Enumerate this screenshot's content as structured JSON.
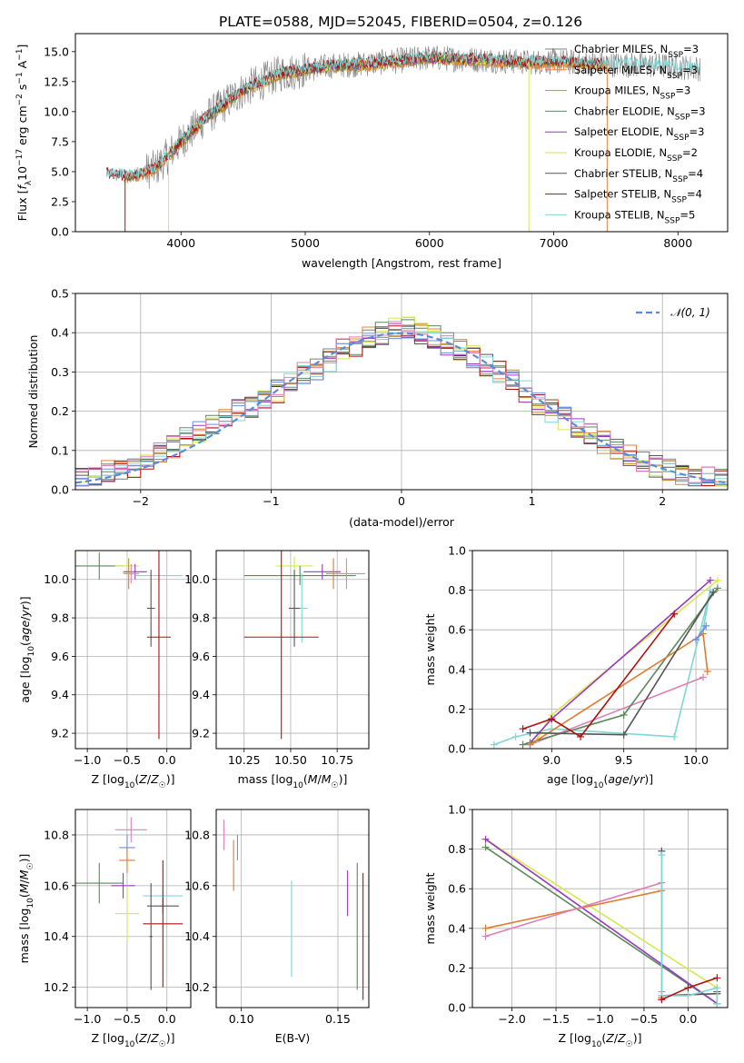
{
  "figure_title": "PLATE=0588, MJD=52045, FIBERID=0504, z=0.126",
  "colors": {
    "Chabrier MILES": "#7f7f7f",
    "Salpeter MILES": "#e8823a",
    "Kroupa MILES": "#c88f2c",
    "Chabrier ELODIE": "#5a8a5a",
    "Salpeter ELODIE": "#9a38c4",
    "Kroupa ELODIE": "#d6e84f",
    "Chabrier STELIB": "#555555",
    "Salpeter STELIB": "#b01010",
    "Kroupa STELIB": "#7fd6d6",
    "extra_blue": "#6a8fe0",
    "extra_orange": "#e07b30",
    "extra_pink": "#e07fb6",
    "normal_curve": "#5b8bd6"
  },
  "chart_data": [
    {
      "type": "line",
      "title": "",
      "xlabel": "wavelength [Angstrom, rest frame]",
      "ylabel": "Flux [f_λ10^-17 erg cm^-2 s^-1 A^-1]",
      "xlim": [
        3150,
        8400
      ],
      "ylim": [
        0,
        16.5
      ],
      "xticks": [
        4000,
        5000,
        6000,
        7000,
        8000
      ],
      "yticks": [
        0.0,
        2.5,
        5.0,
        7.5,
        10.0,
        12.5,
        15.0
      ],
      "yticklabels": [
        "0.0",
        "2.5",
        "5.0",
        "7.5",
        "10.0",
        "12.5",
        "15.0"
      ],
      "legend": [
        "Chabrier MILES, N_SSP=3",
        "Salpeter MILES, N_SSP=3",
        "Kroupa MILES, N_SSP=3",
        "Chabrier ELODIE, N_SSP=3",
        "Salpeter ELODIE, N_SSP=3",
        "Kroupa ELODIE, N_SSP=2",
        "Chabrier STELIB, N_SSP=4",
        "Salpeter STELIB, N_SSP=4",
        "Kroupa STELIB, N_SSP=5"
      ],
      "legend_placement": "right",
      "continuum_x": [
        3400,
        3600,
        3800,
        4000,
        4200,
        4500,
        4800,
        5000,
        5200,
        5500,
        5800,
        6000,
        6200,
        6500,
        6800,
        7000,
        7300,
        7600,
        7900,
        8200
      ],
      "continuum_y": [
        4.8,
        4.6,
        5.3,
        7.5,
        9.5,
        11.8,
        13.2,
        13.5,
        13.8,
        14.0,
        14.3,
        14.5,
        14.4,
        14.3,
        14.1,
        14.2,
        14.0,
        13.9,
        13.8,
        13.6
      ],
      "dips": [
        [
          3550,
          0
        ],
        [
          3900,
          0
        ],
        [
          6800,
          0
        ],
        [
          7430,
          0
        ]
      ]
    },
    {
      "type": "histogram",
      "xlabel": "(data-model)/error",
      "ylabel": "Normed distribution",
      "xlim": [
        -2.5,
        2.5
      ],
      "ylim": [
        0,
        0.5
      ],
      "xticks": [
        -2,
        -1,
        0,
        1,
        2
      ],
      "xticklabels": [
        "−2",
        "−1",
        "0",
        "1",
        "2"
      ],
      "yticks": [
        0.0,
        0.1,
        0.2,
        0.3,
        0.4,
        0.5
      ],
      "yticklabels": [
        "0.0",
        "0.1",
        "0.2",
        "0.3",
        "0.4",
        "0.5"
      ],
      "legend": [
        "𝒩(0, 1)"
      ],
      "legend_placement": "top-right",
      "bin_edges_start": -2.5,
      "bin_width": 0.1,
      "base_shape": [
        0.03,
        0.03,
        0.045,
        0.05,
        0.06,
        0.08,
        0.095,
        0.11,
        0.13,
        0.15,
        0.17,
        0.19,
        0.2,
        0.21,
        0.23,
        0.25,
        0.28,
        0.3,
        0.31,
        0.33,
        0.36,
        0.37,
        0.39,
        0.4,
        0.41,
        0.41,
        0.4,
        0.39,
        0.37,
        0.36,
        0.34,
        0.32,
        0.3,
        0.28,
        0.25,
        0.22,
        0.2,
        0.18,
        0.16,
        0.14,
        0.12,
        0.1,
        0.085,
        0.07,
        0.06,
        0.05,
        0.04,
        0.035,
        0.03,
        0.025
      ]
    },
    {
      "type": "errorbar",
      "xlabel": "Z [log₁₀(Z/Z☉)]",
      "ylabel": "age  [log₁₀(age/yr)]",
      "xlim": [
        -1.15,
        0.3
      ],
      "ylim": [
        9.12,
        10.15
      ],
      "xticks": [
        -1.0,
        -0.5,
        0.0
      ],
      "xticklabels": [
        "−1.0",
        "−0.5",
        "0.0"
      ],
      "yticks": [
        9.2,
        9.4,
        9.6,
        9.8,
        10.0
      ],
      "yticklabels": [
        "9.2",
        "9.4",
        "9.6",
        "9.8",
        "10.0"
      ],
      "points": [
        {
          "c": "Chabrier ELODIE",
          "x": -0.85,
          "xerr": 0.3,
          "y": 10.07,
          "yerr": 0.07
        },
        {
          "c": "Kroupa ELODIE",
          "x": -0.5,
          "xerr": 0.15,
          "y": 10.07,
          "yerr": 0.05
        },
        {
          "c": "Salpeter ELODIE",
          "x": -0.4,
          "xerr": 0.15,
          "y": 10.04,
          "yerr": 0.04
        },
        {
          "c": "extra_orange",
          "x": -0.48,
          "xerr": 0.06,
          "y": 10.03,
          "yerr": 0.08
        },
        {
          "c": "extra_pink",
          "x": -0.45,
          "xerr": 0.1,
          "y": 10.03,
          "yerr": 0.05
        },
        {
          "c": "Kroupa STELIB",
          "x": -0.1,
          "xerr": 0.3,
          "y": 10.02,
          "yerr": 0.03
        },
        {
          "c": "Chabrier STELIB",
          "x": -0.2,
          "xerr": 0.05,
          "y": 9.85,
          "yerr": 0.2
        },
        {
          "c": "Salpeter STELIB",
          "x": -0.1,
          "xerr": 0.15,
          "y": 9.7,
          "yerr": 0.53
        }
      ]
    },
    {
      "type": "errorbar",
      "xlabel": "mass [log₁₀(M/M☉)]",
      "ylabel": "",
      "xlim": [
        10.1,
        10.92
      ],
      "ylim": [
        9.12,
        10.15
      ],
      "xticks": [
        10.25,
        10.5,
        10.75
      ],
      "xticklabels": [
        "10.25",
        "10.50",
        "10.75"
      ],
      "yticks": [
        9.2,
        9.4,
        9.6,
        9.8,
        10.0
      ],
      "yticklabels": [
        "9.2",
        "9.4",
        "9.6",
        "9.8",
        "10.0"
      ],
      "points": [
        {
          "c": "Kroupa ELODIE",
          "x": 10.52,
          "xerr": 0.1,
          "y": 10.07,
          "yerr": 0.05
        },
        {
          "c": "Chabrier ELODIE",
          "x": 10.55,
          "xerr": 0.3,
          "y": 10.02,
          "yerr": 0.05
        },
        {
          "c": "Salpeter ELODIE",
          "x": 10.67,
          "xerr": 0.1,
          "y": 10.04,
          "yerr": 0.04
        },
        {
          "c": "extra_orange",
          "x": 10.73,
          "xerr": 0.04,
          "y": 10.03,
          "yerr": 0.08
        },
        {
          "c": "extra_pink",
          "x": 10.8,
          "xerr": 0.1,
          "y": 10.03,
          "yerr": 0.08
        },
        {
          "c": "Kroupa STELIB",
          "x": 10.56,
          "xerr": 0.03,
          "y": 9.85,
          "yerr": 0.18
        },
        {
          "c": "Chabrier STELIB",
          "x": 10.52,
          "xerr": 0.03,
          "y": 9.85,
          "yerr": 0.2
        },
        {
          "c": "Salpeter STELIB",
          "x": 10.45,
          "xerr": 0.2,
          "y": 9.7,
          "yerr": 0.53
        }
      ]
    },
    {
      "type": "line",
      "xlabel": "age  [log₁₀(age/yr)]",
      "ylabel": "mass weight",
      "xlim": [
        8.45,
        10.22
      ],
      "ylim": [
        0,
        1.0
      ],
      "xticks": [
        9.0,
        9.5,
        10.0
      ],
      "xticklabels": [
        "9.0",
        "9.5",
        "10.0"
      ],
      "yticks": [
        0.0,
        0.2,
        0.4,
        0.6,
        0.8,
        1.0
      ],
      "yticklabels": [
        "0.0",
        "0.2",
        "0.4",
        "0.6",
        "0.8",
        "1.0"
      ],
      "series": [
        {
          "c": "Kroupa STELIB",
          "x": [
            8.6,
            8.75,
            9.0,
            9.85,
            10.1,
            10.05
          ],
          "y": [
            0.02,
            0.06,
            0.1,
            0.06,
            0.8,
            0.6
          ]
        },
        {
          "c": "extra_pink",
          "x": [
            8.85,
            10.05
          ],
          "y": [
            0.02,
            0.36
          ]
        },
        {
          "c": "Kroupa ELODIE",
          "x": [
            8.9,
            9.0,
            10.15
          ],
          "y": [
            0.05,
            0.17,
            0.85
          ]
        },
        {
          "c": "Salpeter ELODIE",
          "x": [
            8.85,
            9.0,
            10.1
          ],
          "y": [
            0.03,
            0.15,
            0.85
          ]
        },
        {
          "c": "Chabrier ELODIE",
          "x": [
            8.8,
            9.5,
            10.15
          ],
          "y": [
            0.02,
            0.17,
            0.81
          ]
        },
        {
          "c": "extra_orange",
          "x": [
            8.85,
            10.05,
            10.08
          ],
          "y": [
            0.02,
            0.58,
            0.39
          ]
        },
        {
          "c": "Chabrier STELIB",
          "x": [
            8.85,
            9.5,
            10.12
          ],
          "y": [
            0.08,
            0.07,
            0.79
          ]
        },
        {
          "c": "Salpeter STELIB",
          "x": [
            8.8,
            9.0,
            9.2,
            9.85
          ],
          "y": [
            0.1,
            0.15,
            0.06,
            0.68
          ]
        },
        {
          "c": "extra_blue",
          "x": [
            10.0,
            10.07
          ],
          "y": [
            0.55,
            0.62
          ]
        }
      ]
    },
    {
      "type": "errorbar",
      "xlabel": "Z [log₁₀(Z/Z☉)]",
      "ylabel": "mass [log₁₀(M/M☉)]",
      "xlim": [
        -1.15,
        0.3
      ],
      "ylim": [
        10.12,
        10.9
      ],
      "xticks": [
        -1.0,
        -0.5,
        0.0
      ],
      "xticklabels": [
        "−1.0",
        "−0.5",
        "0.0"
      ],
      "yticks": [
        10.2,
        10.4,
        10.6,
        10.8
      ],
      "yticklabels": [
        "10.2",
        "10.4",
        "10.6",
        "10.8"
      ],
      "points": [
        {
          "c": "extra_pink",
          "x": -0.45,
          "xerr": 0.2,
          "y": 10.82,
          "yerr": 0.05
        },
        {
          "c": "extra_blue",
          "x": -0.5,
          "xerr": 0.1,
          "y": 10.75,
          "yerr": 0.05
        },
        {
          "c": "extra_orange",
          "x": -0.5,
          "xerr": 0.1,
          "y": 10.7,
          "yerr": 0.05
        },
        {
          "c": "Chabrier ELODIE",
          "x": -0.85,
          "xerr": 0.3,
          "y": 10.61,
          "yerr": 0.08
        },
        {
          "c": "Salpeter ELODIE",
          "x": -0.55,
          "xerr": 0.15,
          "y": 10.6,
          "yerr": 0.05
        },
        {
          "c": "Kroupa ELODIE",
          "x": -0.5,
          "xerr": 0.15,
          "y": 10.49,
          "yerr": 0.11
        },
        {
          "c": "Kroupa STELIB",
          "x": -0.05,
          "xerr": 0.25,
          "y": 10.56,
          "yerr": 0.03
        },
        {
          "c": "Chabrier STELIB",
          "x": -0.05,
          "xerr": 0.2,
          "y": 10.52,
          "yerr": 0.03
        },
        {
          "c": "Salpeter STELIB",
          "x": -0.05,
          "xerr": 0.25,
          "y": 10.45,
          "yerr": 0.25
        },
        {
          "c": "Chabrier STELIB",
          "x": -0.2,
          "xerr": 0.02,
          "y": 10.4,
          "yerr": 0.21
        }
      ]
    },
    {
      "type": "errorbar",
      "xlabel": "E(B-V)",
      "ylabel": "",
      "xlim": [
        0.087,
        0.166
      ],
      "ylim": [
        10.12,
        10.9
      ],
      "xticks": [
        0.1,
        0.15
      ],
      "xticklabels": [
        "0.10",
        "0.15"
      ],
      "yticks": [
        10.2,
        10.4,
        10.6,
        10.8
      ],
      "yticklabels": [
        "10.2",
        "10.4",
        "10.6",
        "10.8"
      ],
      "points": [
        {
          "c": "extra_pink",
          "x": 0.091,
          "xerr": 0,
          "y": 10.8,
          "yerr": 0.06
        },
        {
          "c": "extra_blue",
          "x": 0.098,
          "xerr": 0,
          "y": 10.75,
          "yerr": 0.05
        },
        {
          "c": "extra_orange",
          "x": 0.096,
          "xerr": 0,
          "y": 10.68,
          "yerr": 0.1
        },
        {
          "c": "Kroupa STELIB",
          "x": 0.126,
          "xerr": 0,
          "y": 10.43,
          "yerr": 0.19
        },
        {
          "c": "Salpeter ELODIE",
          "x": 0.155,
          "xerr": 0,
          "y": 10.57,
          "yerr": 0.09
        },
        {
          "c": "Chabrier ELODIE",
          "x": 0.16,
          "xerr": 0,
          "y": 10.44,
          "yerr": 0.25
        },
        {
          "c": "Salpeter STELIB",
          "x": 0.163,
          "xerr": 0,
          "y": 10.4,
          "yerr": 0.25
        }
      ]
    },
    {
      "type": "line",
      "xlabel": "Z [log₁₀(Z/Z☉)]",
      "ylabel": "mass weight",
      "xlim": [
        -2.45,
        0.45
      ],
      "ylim": [
        0,
        1.0
      ],
      "xticks": [
        -2.0,
        -1.5,
        -1.0,
        -0.5,
        0.0
      ],
      "xticklabels": [
        "−2.0",
        "−1.5",
        "−1.0",
        "−0.5",
        "0.0"
      ],
      "yticks": [
        0.0,
        0.2,
        0.4,
        0.6,
        0.8,
        1.0
      ],
      "yticklabels": [
        "0.0",
        "0.2",
        "0.4",
        "0.6",
        "0.8",
        "1.0"
      ],
      "series": [
        {
          "c": "Kroupa ELODIE",
          "x": [
            -2.3,
            0.33
          ],
          "y": [
            0.85,
            0.1
          ]
        },
        {
          "c": "Chabrier ELODIE",
          "x": [
            -2.3,
            0.33
          ],
          "y": [
            0.81,
            0.02
          ]
        },
        {
          "c": "Salpeter ELODIE",
          "x": [
            -2.3,
            0.33
          ],
          "y": [
            0.85,
            0.02
          ]
        },
        {
          "c": "extra_orange",
          "x": [
            -2.3,
            -0.3,
            -0.3
          ],
          "y": [
            0.4,
            0.59,
            0.05
          ]
        },
        {
          "c": "extra_pink",
          "x": [
            -2.3,
            -0.3,
            -0.3
          ],
          "y": [
            0.36,
            0.63,
            0.08
          ]
        },
        {
          "c": "Chabrier STELIB",
          "x": [
            -0.3,
            -0.3,
            0.33,
            0.33
          ],
          "y": [
            0.79,
            0.06,
            0.07,
            0.08
          ]
        },
        {
          "c": "Kroupa STELIB",
          "x": [
            -0.3,
            -0.3,
            0.0,
            0.33,
            0.33
          ],
          "y": [
            0.77,
            0.06,
            0.06,
            0.1,
            0.02
          ]
        },
        {
          "c": "Salpeter STELIB",
          "x": [
            0.33,
            0.0,
            -0.3
          ],
          "y": [
            0.15,
            0.1,
            0.04
          ]
        }
      ]
    }
  ]
}
